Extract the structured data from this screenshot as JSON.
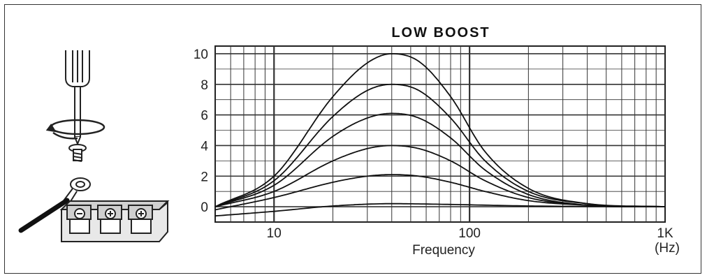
{
  "chart_data": {
    "type": "line",
    "title": "LOW BOOST",
    "xlabel": "Frequency",
    "xunit": "(Hz)",
    "xscale": "log",
    "xlim": [
      5,
      1000
    ],
    "ylim": [
      -1,
      10.5
    ],
    "grid": true,
    "x_ticks": [
      {
        "value": 10,
        "label": "10"
      },
      {
        "value": 100,
        "label": "100"
      },
      {
        "value": 1000,
        "label": "1K"
      }
    ],
    "y_ticks": [
      {
        "value": 10,
        "label": "10"
      },
      {
        "value": 8,
        "label": "8"
      },
      {
        "value": 6,
        "label": "6"
      },
      {
        "value": 4,
        "label": "4"
      },
      {
        "value": 2,
        "label": "2"
      },
      {
        "value": 0,
        "label": "0"
      }
    ],
    "series": [
      {
        "values": [
          [
            5,
            0
          ],
          [
            10,
            2.0
          ],
          [
            20,
            7.2
          ],
          [
            30,
            9.4
          ],
          [
            40,
            10.0
          ],
          [
            55,
            9.5
          ],
          [
            80,
            7.2
          ],
          [
            120,
            3.6
          ],
          [
            200,
            1.2
          ],
          [
            400,
            0.2
          ],
          [
            1000,
            0
          ]
        ]
      },
      {
        "values": [
          [
            5,
            0
          ],
          [
            10,
            1.7
          ],
          [
            20,
            5.9
          ],
          [
            30,
            7.6
          ],
          [
            40,
            8.0
          ],
          [
            55,
            7.6
          ],
          [
            80,
            5.8
          ],
          [
            120,
            3.0
          ],
          [
            200,
            1.0
          ],
          [
            400,
            0.2
          ],
          [
            1000,
            0
          ]
        ]
      },
      {
        "values": [
          [
            5,
            0
          ],
          [
            10,
            1.4
          ],
          [
            20,
            4.6
          ],
          [
            30,
            5.8
          ],
          [
            40,
            6.1
          ],
          [
            55,
            5.8
          ],
          [
            80,
            4.5
          ],
          [
            120,
            2.4
          ],
          [
            200,
            0.8
          ],
          [
            400,
            0.1
          ],
          [
            1000,
            0
          ]
        ]
      },
      {
        "values": [
          [
            5,
            0
          ],
          [
            10,
            1.0
          ],
          [
            20,
            3.0
          ],
          [
            30,
            3.8
          ],
          [
            40,
            4.0
          ],
          [
            55,
            3.8
          ],
          [
            80,
            3.0
          ],
          [
            120,
            1.7
          ],
          [
            200,
            0.6
          ],
          [
            400,
            0.1
          ],
          [
            1000,
            0
          ]
        ]
      },
      {
        "values": [
          [
            5,
            -0.2
          ],
          [
            10,
            0.6
          ],
          [
            20,
            1.6
          ],
          [
            30,
            2.0
          ],
          [
            40,
            2.1
          ],
          [
            55,
            2.0
          ],
          [
            80,
            1.6
          ],
          [
            120,
            1.0
          ],
          [
            200,
            0.4
          ],
          [
            400,
            0.1
          ],
          [
            1000,
            0
          ]
        ]
      },
      {
        "values": [
          [
            5,
            -0.6
          ],
          [
            10,
            -0.3
          ],
          [
            20,
            0.05
          ],
          [
            40,
            0.2
          ],
          [
            80,
            0.15
          ],
          [
            200,
            0.05
          ],
          [
            1000,
            0
          ]
        ]
      }
    ]
  },
  "illustration": {
    "icons": [
      "screwdriver-icon",
      "rotation-arrow-icon",
      "screw-icon",
      "ring-terminal-icon",
      "wire-icon",
      "terminal-block-icon"
    ]
  }
}
